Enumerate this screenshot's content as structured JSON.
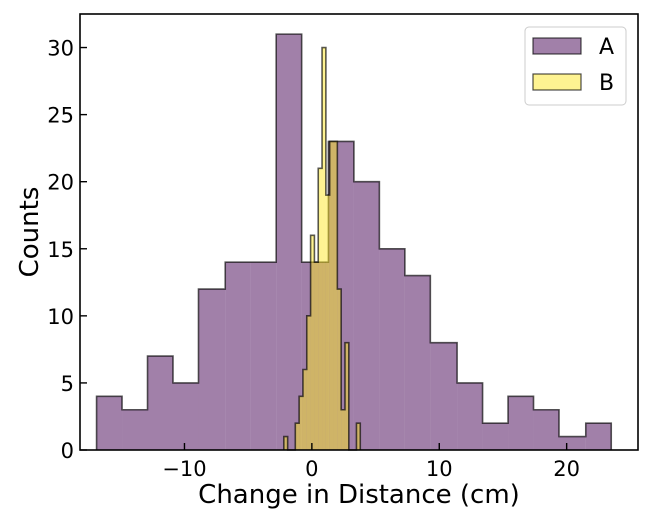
{
  "chart_data": {
    "type": "histogram",
    "title": "",
    "xlabel": "Change in Distance (cm)",
    "ylabel": "Counts",
    "xlim": [
      -18.2,
      25.6
    ],
    "ylim": [
      0,
      32.5
    ],
    "xticks": [
      -10,
      0,
      10,
      20
    ],
    "xtick_labels": [
      "−10",
      "0",
      "10",
      "20"
    ],
    "yticks": [
      0,
      5,
      10,
      15,
      20,
      25,
      30
    ],
    "ytick_labels": [
      "0",
      "5",
      "10",
      "15",
      "20",
      "25",
      "30"
    ],
    "grid": false,
    "legend": "top-right",
    "series": [
      {
        "name": "A",
        "color": "#440154",
        "alpha": 0.5,
        "edges": [
          -16.9,
          -14.9,
          -12.9,
          -10.9,
          -8.9,
          -6.8,
          -4.8,
          -2.8,
          -0.8,
          1.3,
          3.3,
          5.3,
          7.3,
          9.3,
          11.4,
          13.4,
          15.4,
          17.4,
          19.4,
          21.5,
          23.5
        ],
        "counts": [
          4,
          3,
          7,
          5,
          12,
          14,
          14,
          31,
          14,
          23,
          20,
          15,
          13,
          8,
          5,
          2,
          4,
          3,
          1,
          2
        ]
      },
      {
        "name": "B",
        "color": "#fde725",
        "alpha": 0.5,
        "edges": [
          -2.2,
          -1.9,
          -1.6,
          -1.3,
          -1.0,
          -0.7,
          -0.4,
          -0.1,
          0.2,
          0.5,
          0.8,
          1.1,
          1.4,
          1.7,
          2.0,
          2.3,
          2.6,
          2.9,
          3.2,
          3.5,
          3.8
        ],
        "counts": [
          1,
          0,
          0,
          2,
          4,
          6,
          10,
          16,
          14,
          21,
          30,
          19,
          23,
          23,
          12,
          3,
          8,
          0,
          0,
          2
        ]
      }
    ]
  }
}
